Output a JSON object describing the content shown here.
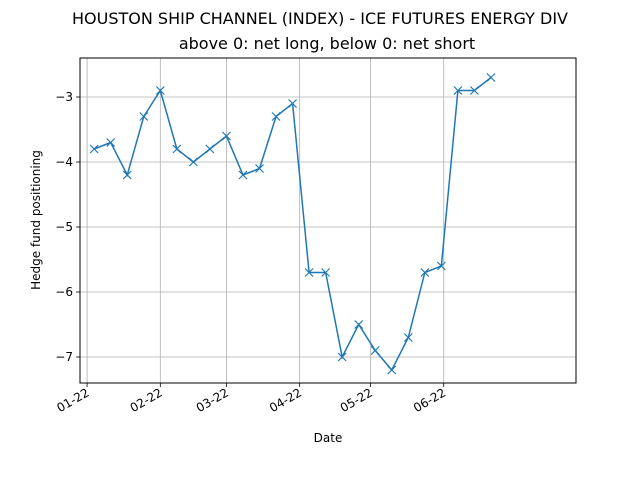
{
  "chart_data": {
    "type": "line",
    "title": "HOUSTON SHIP CHANNEL (INDEX) - ICE FUTURES ENERGY DIV",
    "subtitle": "above 0: net long, below 0: net short",
    "xlabel": "Date",
    "ylabel": "Hedge fund positioning",
    "x_tick_labels": [
      "01-22",
      "02-22",
      "03-22",
      "04-22",
      "05-22",
      "06-22"
    ],
    "x_tick_dates": [
      "2022-01-01",
      "2022-02-01",
      "2022-03-01",
      "2022-04-01",
      "2022-05-01",
      "2022-06-01"
    ],
    "y_tick_labels": [
      "−3",
      "−4",
      "−5",
      "−6",
      "−7"
    ],
    "y_tick_values": [
      -3,
      -4,
      -5,
      -6,
      -7
    ],
    "xlim": [
      "2021-12-29",
      "2022-07-27"
    ],
    "ylim": [
      -7.4,
      -2.4
    ],
    "grid": true,
    "marker": "x",
    "color": "#1f77b4",
    "series": [
      {
        "x": [
          "2022-01-04",
          "2022-01-11",
          "2022-01-18",
          "2022-01-25",
          "2022-02-01",
          "2022-02-08",
          "2022-02-15",
          "2022-02-22",
          "2022-03-01",
          "2022-03-08",
          "2022-03-15",
          "2022-03-22",
          "2022-03-29",
          "2022-04-05",
          "2022-04-12",
          "2022-04-19",
          "2022-04-26",
          "2022-05-03",
          "2022-05-10",
          "2022-05-17",
          "2022-05-24",
          "2022-05-31",
          "2022-06-07",
          "2022-06-14",
          "2022-06-21"
        ],
        "values": [
          -3.8,
          -3.7,
          -4.2,
          -3.3,
          -2.9,
          -3.8,
          -4.0,
          -3.8,
          -3.6,
          -4.2,
          -4.1,
          -3.3,
          -3.1,
          -5.7,
          -5.7,
          -7.0,
          -6.5,
          -6.9,
          -7.2,
          -6.7,
          -5.7,
          -5.6,
          -2.9,
          -2.9,
          -2.7
        ]
      }
    ]
  }
}
